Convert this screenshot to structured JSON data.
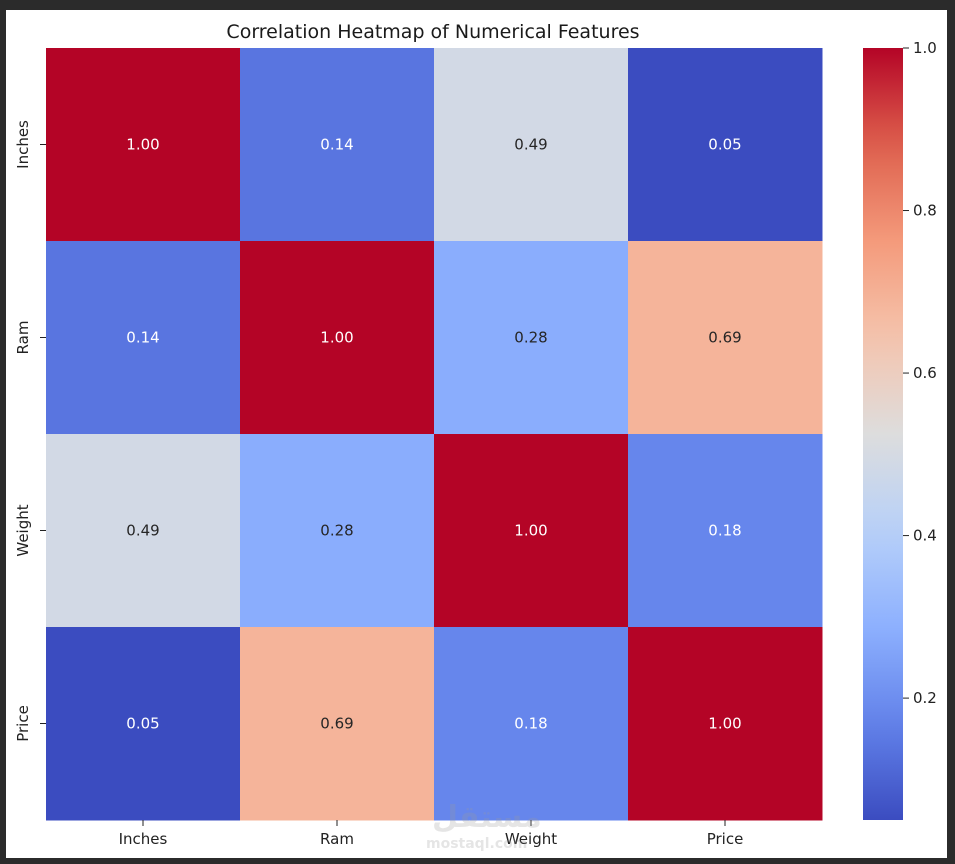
{
  "chart_data": {
    "type": "heatmap",
    "title": "Correlation Heatmap of Numerical Features",
    "x_labels": [
      "Inches",
      "Ram",
      "Weight",
      "Price"
    ],
    "y_labels": [
      "Inches",
      "Ram",
      "Weight",
      "Price"
    ],
    "values": [
      [
        1.0,
        0.14,
        0.49,
        0.05
      ],
      [
        0.14,
        1.0,
        0.28,
        0.69
      ],
      [
        0.49,
        0.28,
        1.0,
        0.18
      ],
      [
        0.05,
        0.69,
        0.18,
        1.0
      ]
    ],
    "cell_labels": [
      [
        "1.00",
        "0.14",
        "0.49",
        "0.05"
      ],
      [
        "0.14",
        "1.00",
        "0.28",
        "0.69"
      ],
      [
        "0.49",
        "0.28",
        "1.00",
        "0.18"
      ],
      [
        "0.05",
        "0.69",
        "0.18",
        "1.00"
      ]
    ],
    "colormap": "coolwarm",
    "color_range": [
      0.05,
      1.0
    ],
    "colorbar_ticks": [
      0.2,
      0.4,
      0.6,
      0.8,
      1.0
    ],
    "colorbar_tick_labels": [
      "0.2",
      "0.4",
      "0.6",
      "0.8",
      "1.0"
    ],
    "colorbar_placement": "right",
    "annotation_colors": {
      "light": "#ffffff",
      "dark": "#262626"
    }
  },
  "watermark": {
    "logo_text": "مستقل",
    "text": "mostaql.com"
  }
}
